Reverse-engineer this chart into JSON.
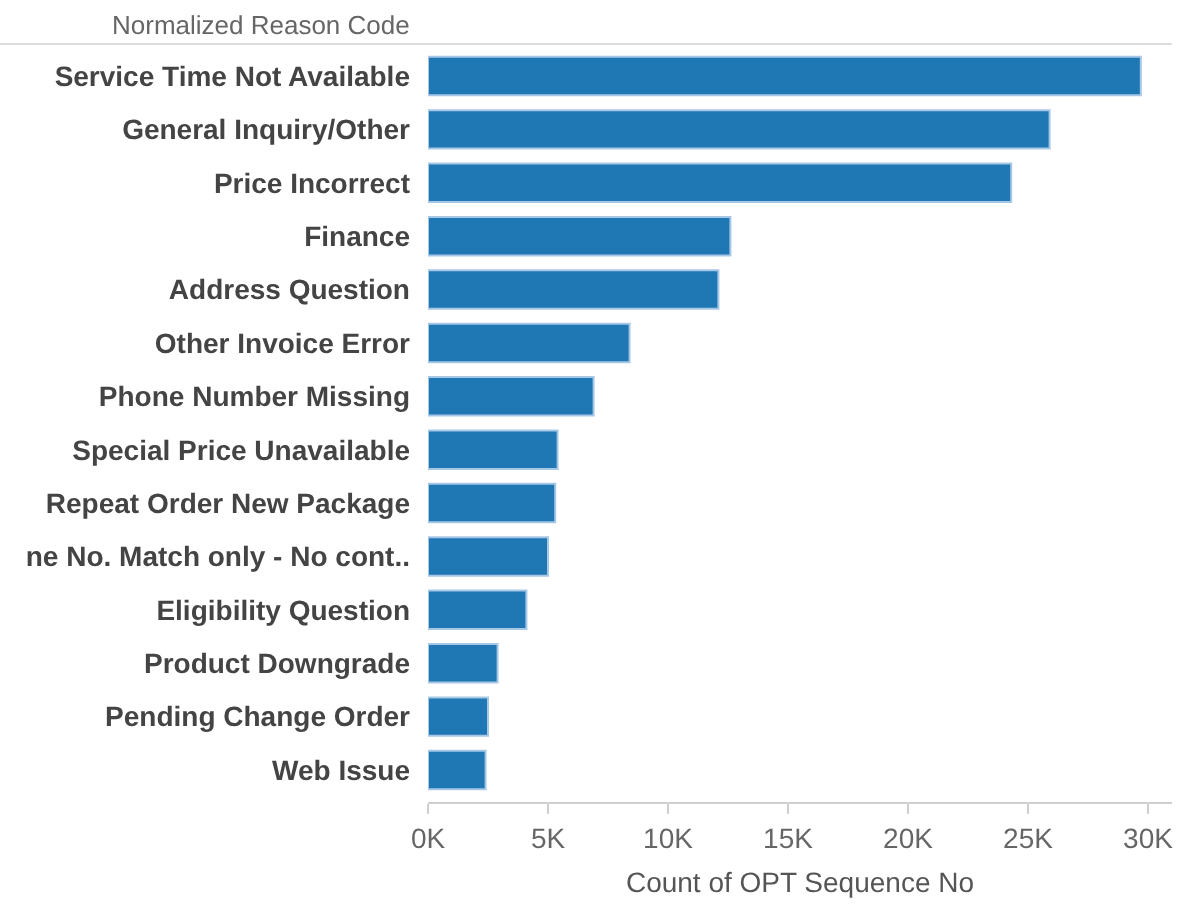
{
  "chart_data": {
    "type": "bar",
    "orientation": "horizontal",
    "ylabel": "Normalized Reason Code",
    "xlabel": "Count of OPT Sequence No",
    "categories": [
      "Service Time Not Available",
      "General Inquiry/Other",
      "Price Incorrect",
      "Finance",
      "Address Question",
      "Other Invoice Error",
      "Phone Number Missing",
      "Special Price Unavailable",
      "Repeat Order New Package",
      "ne No. Match only - No cont..",
      "Eligibility Question",
      "Product Downgrade",
      "Pending Change Order",
      "Web Issue"
    ],
    "values": [
      29700,
      25900,
      24300,
      12600,
      12100,
      8400,
      6900,
      5400,
      5300,
      5000,
      4100,
      2900,
      2500,
      2400
    ],
    "color": "#1f77b4",
    "xlim": [
      0,
      31000
    ],
    "xticks": [
      {
        "value": 0,
        "label": "0K"
      },
      {
        "value": 5000,
        "label": "5K"
      },
      {
        "value": 10000,
        "label": "10K"
      },
      {
        "value": 15000,
        "label": "15K"
      },
      {
        "value": 20000,
        "label": "20K"
      },
      {
        "value": 25000,
        "label": "25K"
      },
      {
        "value": 30000,
        "label": "30K"
      }
    ],
    "data_labels": false
  }
}
